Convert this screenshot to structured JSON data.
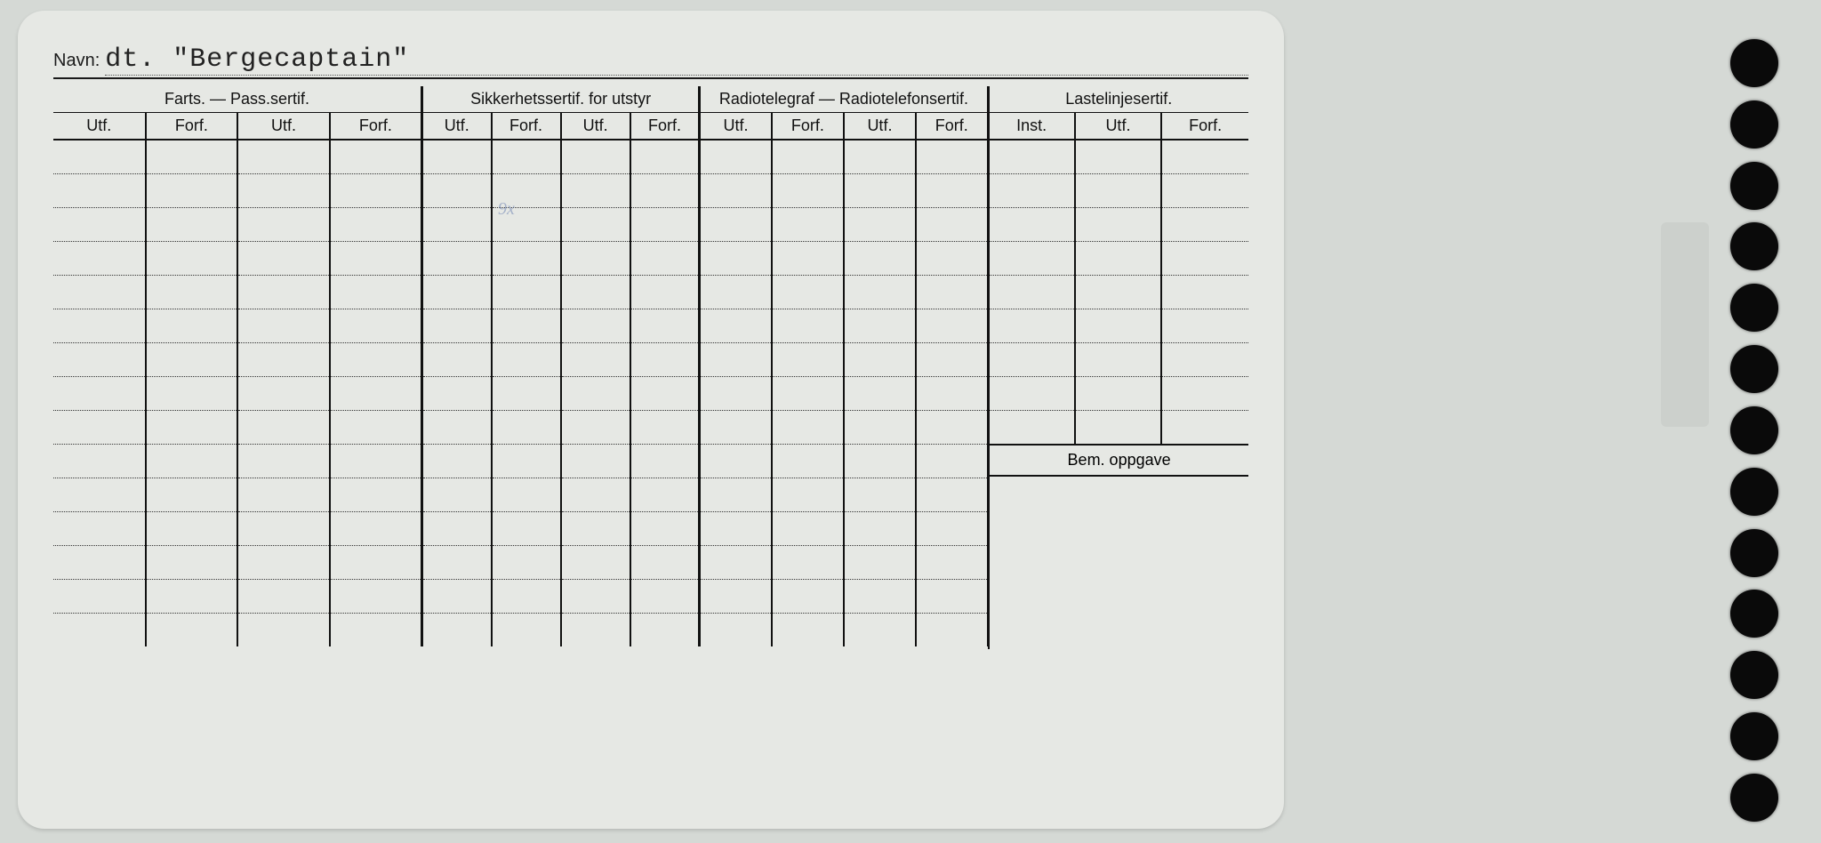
{
  "navn_label": "Navn:",
  "navn_value": "dt. \"Bergecaptain\"",
  "groups": {
    "farts": "Farts. — Pass.sertif.",
    "sikkerhet": "Sikkerhetssertif. for utstyr",
    "radio": "Radiotelegraf — Radiotelefonsertif.",
    "laste": "Lastelinjesertif."
  },
  "sub": {
    "utf": "Utf.",
    "forf": "Forf.",
    "inst": "Inst."
  },
  "bem_label": "Bem. oppgave",
  "handwriting1": "9x",
  "layout": {
    "body_rows": 15,
    "colors": {
      "page_bg": "#d5d9d5",
      "card_bg": "#e6e8e4",
      "ink": "#111111",
      "dotted": "#333333",
      "hole": "#0a0a0a",
      "hand_ink": "#7a8db8"
    },
    "columns": 15,
    "hole_count": 13
  }
}
